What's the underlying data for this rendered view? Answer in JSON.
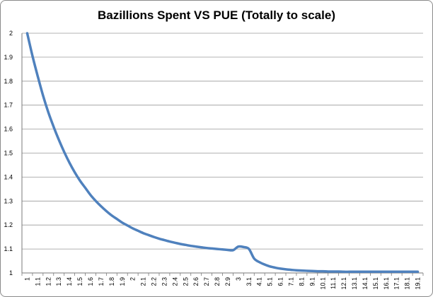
{
  "chart_data": {
    "type": "line",
    "title": "Bazillions Spent VS PUE (Totally to scale)",
    "xlabel": "",
    "ylabel": "",
    "ylim": [
      1,
      2
    ],
    "y_ticks": [
      1,
      1.1,
      1.2,
      1.3,
      1.4,
      1.5,
      1.6,
      1.7,
      1.8,
      1.9,
      2
    ],
    "grid": true,
    "legend": "none",
    "series_color": "#4F81BD",
    "x_labels": [
      "1",
      "1.1",
      "1.2",
      "1.3",
      "1.4",
      "1.5",
      "1.6",
      "1.7",
      "1.8",
      "1.9",
      "2",
      "2.1",
      "2.2",
      "2.3",
      "2.4",
      "2.5",
      "2.6",
      "2.7",
      "2.8",
      "2.9",
      "3",
      "3.1",
      "4.1",
      "5.1",
      "6.1",
      "7.1",
      "8.1",
      "9.1",
      "10.1",
      "11.1",
      "12.1",
      "13.1",
      "14.1",
      "15.1",
      "16.1",
      "17.1",
      "18.1",
      "19.1"
    ],
    "series": [
      {
        "x": [
          1,
          1.05,
          1.1,
          1.15,
          1.2,
          1.25,
          1.3,
          1.35,
          1.4,
          1.45,
          1.5,
          1.55,
          1.6,
          1.65,
          1.7,
          1.75,
          1.8,
          1.85,
          1.9,
          1.95,
          2,
          2.05,
          2.1,
          2.15,
          2.2,
          2.25,
          2.3,
          2.35,
          2.4,
          2.45,
          2.5,
          2.55,
          2.6,
          2.65,
          2.7,
          2.75,
          2.8,
          2.85,
          2.9,
          2.95,
          3,
          3.05,
          3.1,
          3.6,
          4.1,
          4.6,
          5.1,
          5.6,
          6.1,
          6.6,
          7.1,
          7.6,
          8.1,
          8.6,
          9.1,
          9.6,
          10.1,
          10.6,
          11.1,
          11.6,
          12.1,
          12.6,
          13.1,
          13.6,
          14.1,
          14.6,
          15.1,
          15.6,
          16.1,
          16.6,
          17.1,
          17.6,
          18.1,
          18.6,
          19.1
        ],
        "values": [
          2,
          1.905,
          1.82,
          1.74,
          1.67,
          1.61,
          1.555,
          1.505,
          1.46,
          1.42,
          1.385,
          1.355,
          1.325,
          1.3,
          1.278,
          1.258,
          1.24,
          1.225,
          1.21,
          1.198,
          1.186,
          1.176,
          1.166,
          1.158,
          1.15,
          1.143,
          1.137,
          1.131,
          1.126,
          1.121,
          1.117,
          1.113,
          1.11,
          1.107,
          1.104,
          1.102,
          1.1,
          1.098,
          1.096,
          1.095,
          1.11,
          1.108,
          1.1,
          1.06,
          1.045,
          1.035,
          1.027,
          1.022,
          1.018,
          1.015,
          1.013,
          1.011,
          1.01,
          1.009,
          1.008,
          1.007,
          1.007,
          1.006,
          1.006,
          1.006,
          1.005,
          1.005,
          1.005,
          1.005,
          1.005,
          1.005,
          1.005,
          1.005,
          1.005,
          1.005,
          1.005,
          1.005,
          1.005,
          1.005,
          1.005
        ]
      }
    ]
  }
}
